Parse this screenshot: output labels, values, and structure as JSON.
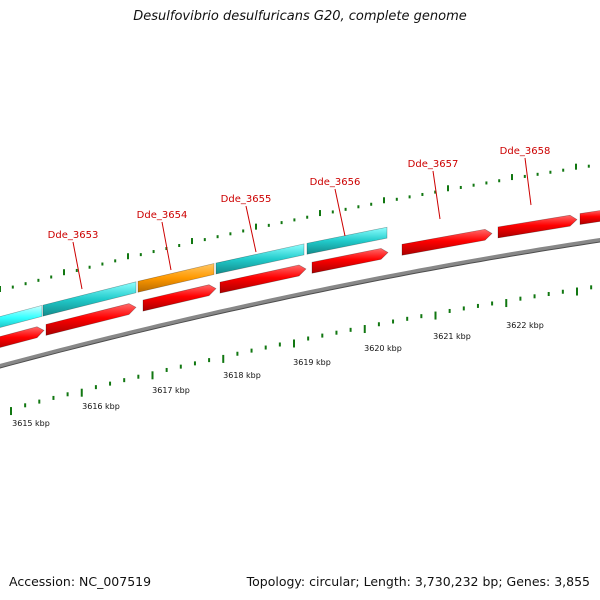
{
  "title": "Desulfovibrio desulfuricans G20, complete genome",
  "footer": {
    "accession": "Accession: NC_007519",
    "summary": "Topology: circular; Length: 3,730,232 bp; Genes: 3,855"
  },
  "colors": {
    "forward_gene": "#ff0000",
    "reverse_cyan_bright": "#33ffff",
    "reverse_cyan": "#33cccc",
    "reverse_orange": "#ff9900",
    "backbone": "#888888",
    "ticks": "#117711",
    "labels": "#cc0000"
  },
  "gene_labels": [
    "Dde_3653",
    "Dde_3654",
    "Dde_3655",
    "Dde_3656",
    "Dde_3657",
    "Dde_3658"
  ],
  "scale_labels": [
    "3615 kbp",
    "3616 kbp",
    "3617 kbp",
    "3618 kbp",
    "3619 kbp",
    "3620 kbp",
    "3621 kbp",
    "3622 kbp"
  ]
}
